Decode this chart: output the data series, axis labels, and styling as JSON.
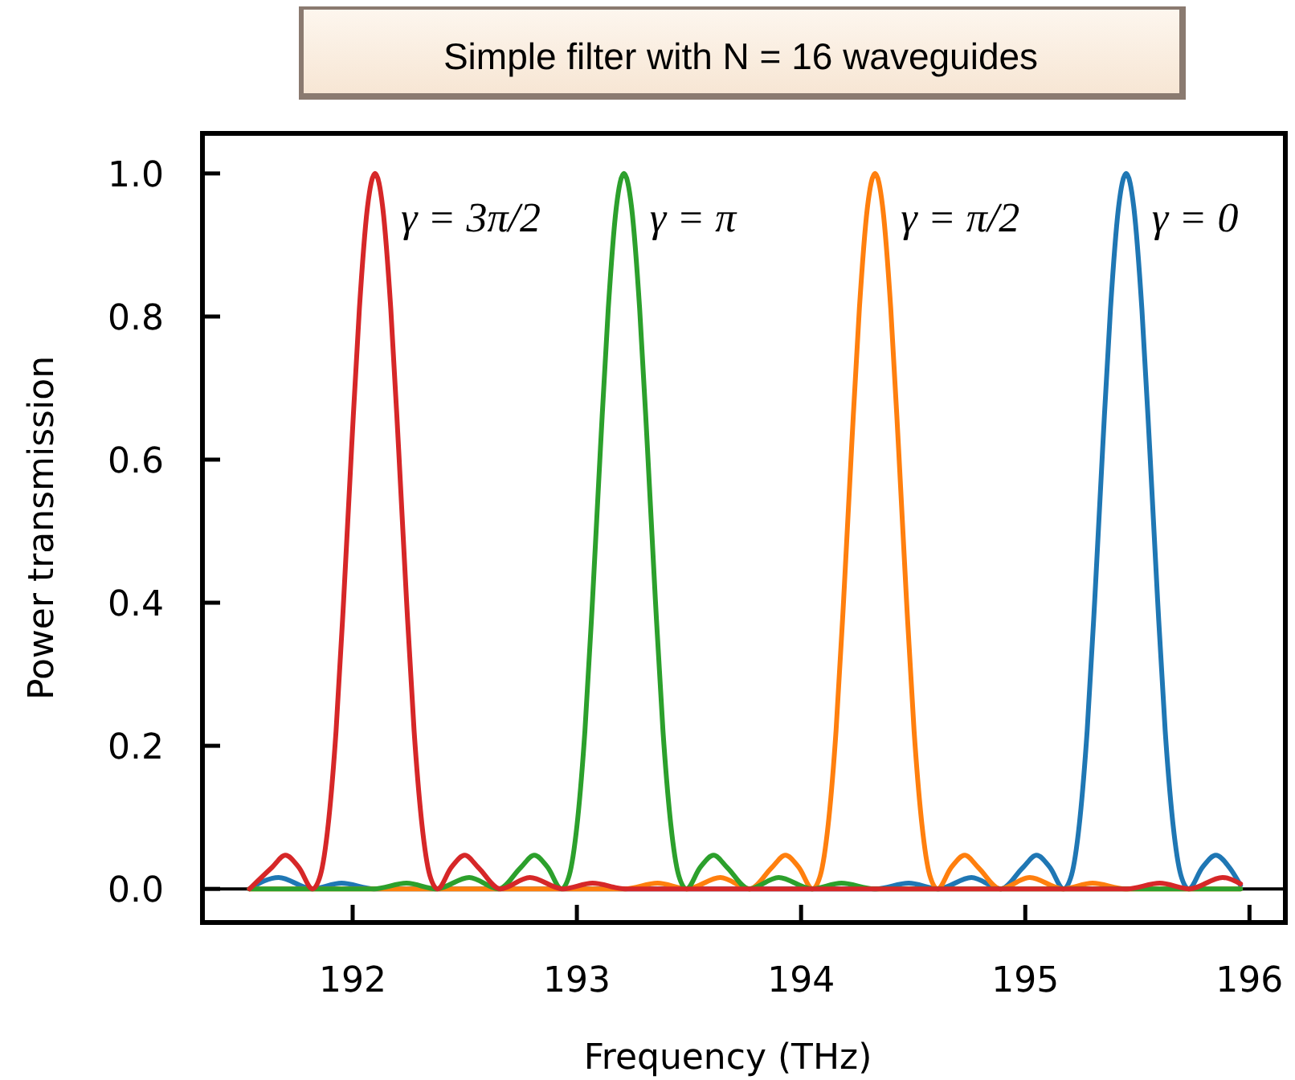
{
  "chart_data": {
    "type": "line",
    "title": "Simple filter with N = 16 waveguides",
    "xlabel": "Frequency (THz)",
    "ylabel": "Power transmission",
    "xlim": [
      191.33,
      196.16
    ],
    "ylim": [
      -0.047,
      1.056
    ],
    "xticks": [
      192,
      193,
      194,
      195,
      196
    ],
    "yticks": [
      {
        "value": 0,
        "label": "0.0"
      },
      0.2,
      0.4,
      0.6,
      0.8,
      {
        "value": 1,
        "label": "1.0"
      }
    ],
    "grid": false,
    "marker": "none",
    "line_style": "solid",
    "ref_lines": [
      {
        "axis": "y",
        "value": 0,
        "color": "#000000"
      }
    ],
    "series": [
      {
        "name": "γ = 0",
        "color": "#1f77b4",
        "x": [
          191.54,
          191.67,
          191.818,
          191.95,
          192.096,
          194.334,
          194.48,
          194.613,
          194.76,
          194.892,
          194.99,
          195.05,
          195.11,
          195.171,
          195.206,
          195.241,
          195.276,
          195.31,
          195.345,
          195.38,
          195.415,
          195.45,
          195.485,
          195.52,
          195.555,
          195.59,
          195.624,
          195.659,
          195.694,
          195.729,
          195.79,
          195.85,
          195.91,
          195.96
        ],
        "values": [
          0,
          0.016,
          0,
          0.008,
          0,
          0,
          0.008,
          0,
          0.016,
          0,
          0.03,
          0.047,
          0.03,
          0,
          0.019,
          0.09,
          0.221,
          0.405,
          0.615,
          0.811,
          0.95,
          1,
          0.95,
          0.811,
          0.615,
          0.405,
          0.221,
          0.09,
          0.019,
          0,
          0.03,
          0.047,
          0.03,
          0.005
        ]
      },
      {
        "name": "γ = π/2",
        "color": "#ff7f0e",
        "x": [
          191.54,
          193.214,
          193.36,
          193.493,
          193.64,
          193.772,
          193.87,
          193.93,
          193.99,
          194.051,
          194.086,
          194.121,
          194.156,
          194.19,
          194.225,
          194.26,
          194.295,
          194.33,
          194.365,
          194.4,
          194.435,
          194.47,
          194.504,
          194.539,
          194.574,
          194.609,
          194.67,
          194.73,
          194.79,
          194.888,
          195.02,
          195.167,
          195.3,
          195.446,
          195.96
        ],
        "values": [
          0,
          0,
          0.008,
          0,
          0.016,
          0,
          0.03,
          0.047,
          0.03,
          0,
          0.019,
          0.09,
          0.221,
          0.405,
          0.615,
          0.811,
          0.95,
          1,
          0.95,
          0.811,
          0.615,
          0.405,
          0.221,
          0.09,
          0.019,
          0,
          0.03,
          0.047,
          0.03,
          0,
          0.016,
          0,
          0.008,
          0,
          0
        ]
      },
      {
        "name": "γ = π",
        "color": "#2ca02c",
        "x": [
          191.54,
          192.094,
          192.24,
          192.373,
          192.52,
          192.652,
          192.75,
          192.81,
          192.87,
          192.931,
          192.966,
          193.001,
          193.036,
          193.07,
          193.105,
          193.14,
          193.175,
          193.21,
          193.245,
          193.28,
          193.315,
          193.35,
          193.384,
          193.419,
          193.454,
          193.489,
          193.55,
          193.61,
          193.67,
          193.768,
          193.9,
          194.047,
          194.18,
          194.326,
          195.96
        ],
        "values": [
          0,
          0,
          0.008,
          0,
          0.016,
          0,
          0.03,
          0.047,
          0.03,
          0,
          0.019,
          0.09,
          0.221,
          0.405,
          0.615,
          0.811,
          0.95,
          1,
          0.95,
          0.811,
          0.615,
          0.405,
          0.221,
          0.09,
          0.019,
          0,
          0.03,
          0.047,
          0.03,
          0,
          0.016,
          0,
          0.008,
          0,
          0
        ]
      },
      {
        "name": "γ = 3π/2",
        "color": "#d62728",
        "x": [
          191.54,
          191.64,
          191.7,
          191.76,
          191.821,
          191.856,
          191.891,
          191.926,
          191.96,
          191.995,
          192.03,
          192.065,
          192.1,
          192.135,
          192.17,
          192.205,
          192.24,
          192.274,
          192.309,
          192.344,
          192.379,
          192.44,
          192.5,
          192.56,
          192.658,
          192.79,
          192.937,
          193.07,
          193.216,
          195.454,
          195.6,
          195.733,
          195.88,
          195.96
        ],
        "values": [
          0,
          0.03,
          0.047,
          0.03,
          0,
          0.019,
          0.09,
          0.221,
          0.405,
          0.615,
          0.811,
          0.95,
          1,
          0.95,
          0.811,
          0.615,
          0.405,
          0.221,
          0.09,
          0.019,
          0,
          0.03,
          0.047,
          0.03,
          0,
          0.016,
          0,
          0.008,
          0,
          0,
          0.008,
          0,
          0.016,
          0.007
        ]
      }
    ]
  }
}
